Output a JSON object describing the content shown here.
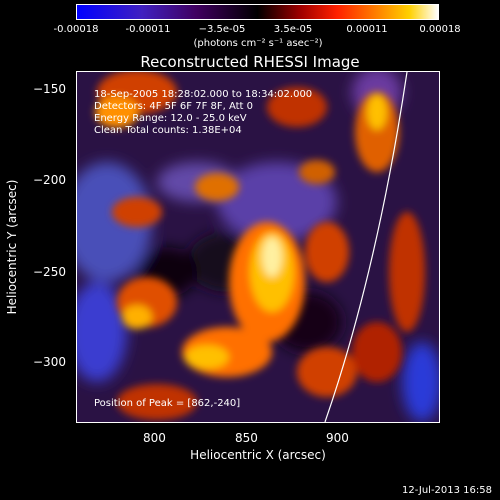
{
  "colorbar": {
    "ticks": [
      "-0.00018",
      "-0.00011",
      "−3.5e-05",
      "3.5e-05",
      "0.00011",
      "0.00018"
    ],
    "unit": "(photons cm⁻² s⁻¹ asec⁻²)"
  },
  "title": "Reconstructed RHESSI Image",
  "info": {
    "line1": "18-Sep-2005 18:28:02.000 to 18:34:02.000",
    "line2": "Detectors: 4F 5F 6F 7F 8F, Att 0",
    "line3": "Energy Range: 12.0 - 25.0 keV",
    "line4": "Clean     Total counts: 1.38E+04",
    "peak": "Position of Peak = [862,-240]"
  },
  "axes": {
    "xlabel": "Heliocentric X (arcsec)",
    "ylabel": "Heliocentric Y (arcsec)",
    "xticks": [
      "800",
      "850",
      "900"
    ],
    "yticks": [
      "−150",
      "−200",
      "−250",
      "−300"
    ]
  },
  "timestamp": "12-Jul-2013 16:58",
  "colors": {
    "background": "#000000",
    "foreground": "#ffffff"
  }
}
